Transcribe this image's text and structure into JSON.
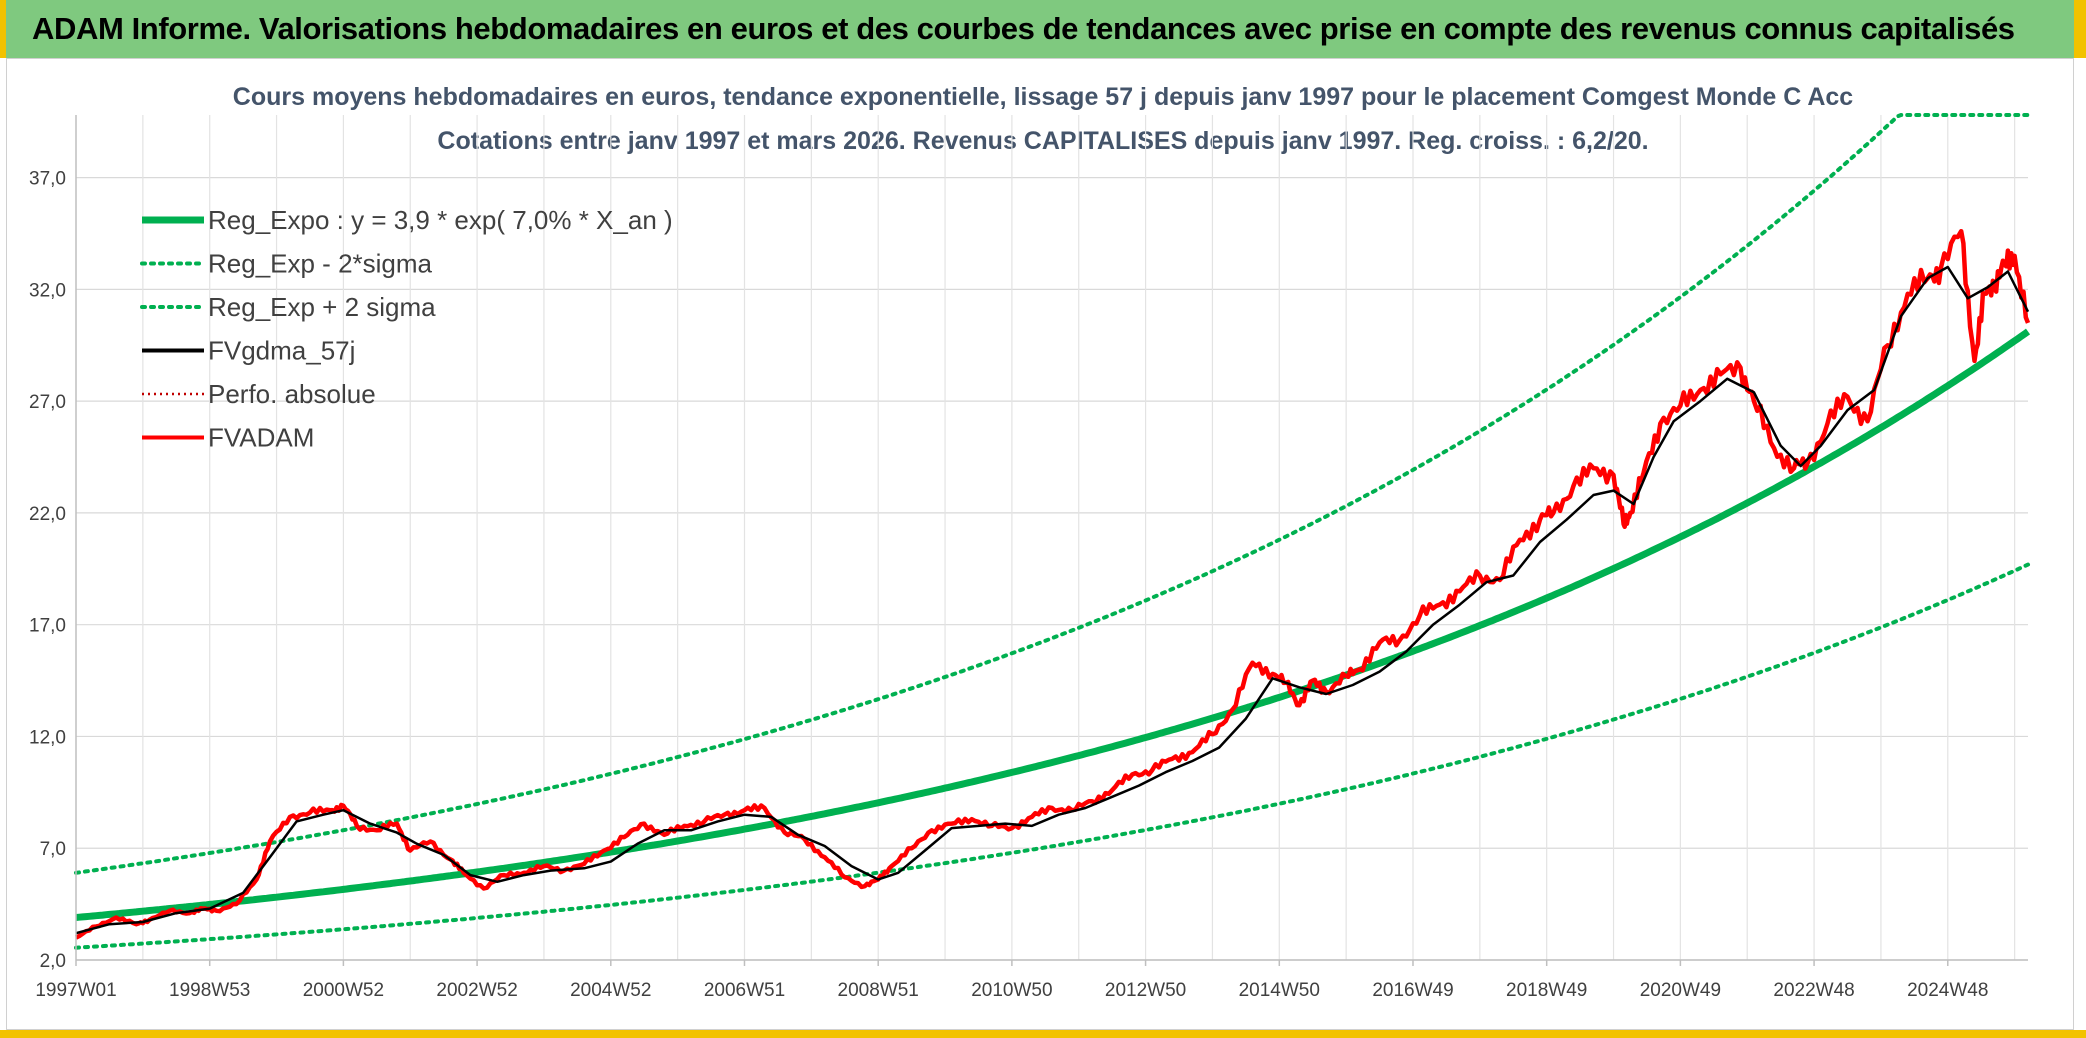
{
  "banner": {
    "title": "ADAM Informe. Valorisations hebdomadaires en euros et des courbes de tendances avec prise en compte des revenus connus capitalisés"
  },
  "colors": {
    "banner_bg": "#7fc97f",
    "accent": "#f2c200",
    "reg_expo": "#00b050",
    "fvadam": "#ff0000",
    "fvgdma": "#000000",
    "title_text": "#44546a"
  },
  "chart_data": {
    "type": "line",
    "title": "Cours moyens hebdomadaires en euros, tendance exponentielle, lissage 57 j depuis janv 1997 pour le placement Comgest Monde C Acc",
    "subtitle": "Cotations entre janv 1997 et mars 2026. Revenus CAPITALISES depuis janv 1997. Reg. croiss. : 6,2/20.",
    "xlabel": "",
    "ylabel": "",
    "ylim": [
      2.0,
      39.8
    ],
    "xlim": [
      1997.0,
      2026.2
    ],
    "yticks": [
      "2,0",
      "7,0",
      "12,0",
      "17,0",
      "22,0",
      "27,0",
      "32,0",
      "37,0"
    ],
    "ytick_values": [
      2,
      7,
      12,
      17,
      22,
      27,
      32,
      37
    ],
    "xticks": [
      "1997W01",
      "1998W53",
      "2000W52",
      "2002W52",
      "2004W52",
      "2006W51",
      "2008W51",
      "2010W50",
      "2012W50",
      "2014W50",
      "2016W49",
      "2018W49",
      "2020W49",
      "2022W48",
      "2024W48"
    ],
    "xtick_years": [
      1997.0,
      1999.0,
      2001.0,
      2003.0,
      2005.0,
      2007.0,
      2009.0,
      2011.0,
      2013.0,
      2015.0,
      2017.0,
      2019.0,
      2021.0,
      2023.0,
      2025.0
    ],
    "grid": true,
    "legend_position": "top-left",
    "legend": [
      {
        "label": "Reg_Expo : y = 3,9 * exp( 7,0% *  X_an )",
        "color": "#00b050",
        "style": "solid-thick"
      },
      {
        "label": "Reg_Exp - 2*sigma",
        "color": "#00b050",
        "style": "dotted"
      },
      {
        "label": "Reg_Exp + 2 sigma",
        "color": "#00b050",
        "style": "dotted"
      },
      {
        "label": "FVgdma_57j",
        "color": "#000000",
        "style": "solid"
      },
      {
        "label": "Perfo. absolue",
        "color": "#c00000",
        "style": "dotted-thin"
      },
      {
        "label": "FVADAM",
        "color": "#ff0000",
        "style": "solid"
      }
    ],
    "series": [
      {
        "name": "Reg_Expo",
        "type": "exponential",
        "a": 3.9,
        "rate": 0.07,
        "x_start": 1997.0,
        "x_end": 2026.2
      },
      {
        "name": "Reg_Exp - 2*sigma",
        "type": "exponential",
        "a": 2.55,
        "rate": 0.07,
        "x_start": 1997.0,
        "x_end": 2026.2
      },
      {
        "name": "Reg_Exp + 2 sigma",
        "type": "exponential",
        "a": 5.9,
        "rate": 0.07,
        "x_start": 1997.0,
        "x_end": 2026.2,
        "cap": 39.8
      },
      {
        "name": "FVADAM",
        "x": [
          1997.0,
          1997.3,
          1997.6,
          1997.9,
          1998.1,
          1998.4,
          1998.7,
          1998.9,
          1999.1,
          1999.4,
          1999.7,
          1999.9,
          2000.2,
          2000.5,
          2000.8,
          2001.0,
          2001.2,
          2001.5,
          2001.8,
          2002.0,
          2002.3,
          2002.6,
          2002.8,
          2003.1,
          2003.4,
          2003.7,
          2004.0,
          2004.3,
          2004.6,
          2004.9,
          2005.2,
          2005.5,
          2005.8,
          2006.1,
          2006.4,
          2006.7,
          2007.0,
          2007.3,
          2007.6,
          2007.9,
          2008.2,
          2008.5,
          2008.8,
          2009.0,
          2009.2,
          2009.5,
          2009.8,
          2010.1,
          2010.4,
          2010.7,
          2011.0,
          2011.3,
          2011.6,
          2011.9,
          2012.2,
          2012.5,
          2012.8,
          2013.1,
          2013.4,
          2013.7,
          2014.0,
          2014.3,
          2014.6,
          2014.9,
          2015.1,
          2015.3,
          2015.5,
          2015.7,
          2016.0,
          2016.2,
          2016.5,
          2016.8,
          2017.1,
          2017.4,
          2017.7,
          2018.0,
          2018.3,
          2018.6,
          2018.9,
          2019.1,
          2019.4,
          2019.7,
          2020.0,
          2020.15,
          2020.25,
          2020.45,
          2020.7,
          2021.0,
          2021.3,
          2021.6,
          2021.9,
          2022.1,
          2022.4,
          2022.7,
          2022.9,
          2023.2,
          2023.5,
          2023.8,
          2024.1,
          2024.4,
          2024.7,
          2024.9,
          2025.2,
          2025.4,
          2025.55,
          2025.7,
          2025.85,
          2026.0,
          2026.2
        ],
        "values": [
          3.0,
          3.5,
          3.9,
          3.6,
          3.8,
          4.2,
          4.1,
          4.3,
          4.2,
          4.5,
          5.6,
          7.3,
          8.4,
          8.6,
          8.7,
          8.9,
          8.0,
          7.8,
          8.1,
          6.9,
          7.3,
          6.5,
          5.9,
          5.2,
          5.8,
          5.9,
          6.2,
          6.0,
          6.3,
          6.9,
          7.5,
          8.1,
          7.6,
          8.0,
          8.2,
          8.5,
          8.7,
          8.8,
          7.7,
          7.4,
          6.6,
          5.7,
          5.3,
          5.6,
          6.2,
          7.0,
          7.8,
          8.1,
          8.3,
          8.0,
          7.9,
          8.4,
          8.8,
          8.7,
          9.1,
          9.6,
          10.3,
          10.5,
          11.0,
          11.3,
          12.1,
          13.2,
          15.3,
          14.8,
          14.4,
          13.4,
          14.5,
          14.0,
          14.7,
          15.0,
          16.2,
          16.3,
          17.4,
          17.9,
          18.5,
          19.2,
          19.0,
          20.8,
          21.7,
          22.0,
          23.2,
          24.0,
          23.7,
          21.5,
          22.0,
          23.8,
          26.0,
          26.8,
          27.5,
          28.2,
          28.5,
          27.0,
          24.9,
          24.0,
          24.2,
          26.0,
          27.2,
          26.1,
          29.5,
          31.8,
          32.5,
          33.0,
          34.6,
          28.8,
          31.8,
          32.3,
          33.1,
          33.5,
          30.5
        ]
      },
      {
        "name": "FVgdma_57j",
        "x": [
          1997.0,
          1997.5,
          1998.0,
          1998.5,
          1999.0,
          1999.5,
          1999.9,
          2000.3,
          2000.7,
          2001.0,
          2001.4,
          2001.8,
          2002.1,
          2002.5,
          2002.9,
          2003.3,
          2003.7,
          2004.1,
          2004.6,
          2005.0,
          2005.4,
          2005.8,
          2006.2,
          2006.6,
          2007.0,
          2007.4,
          2007.8,
          2008.2,
          2008.6,
          2009.0,
          2009.3,
          2009.7,
          2010.1,
          2010.5,
          2010.9,
          2011.3,
          2011.7,
          2012.1,
          2012.5,
          2012.9,
          2013.3,
          2013.7,
          2014.1,
          2014.5,
          2014.9,
          2015.3,
          2015.7,
          2016.1,
          2016.5,
          2016.9,
          2017.3,
          2017.7,
          2018.1,
          2018.5,
          2018.9,
          2019.3,
          2019.7,
          2020.0,
          2020.3,
          2020.6,
          2020.9,
          2021.3,
          2021.7,
          2022.1,
          2022.5,
          2022.8,
          2023.1,
          2023.5,
          2023.9,
          2024.3,
          2024.7,
          2025.0,
          2025.3,
          2025.6,
          2025.9,
          2026.2
        ],
        "values": [
          3.2,
          3.6,
          3.7,
          4.1,
          4.3,
          5.0,
          6.6,
          8.2,
          8.5,
          8.7,
          8.1,
          7.7,
          7.2,
          6.7,
          5.8,
          5.5,
          5.8,
          6.0,
          6.1,
          6.4,
          7.2,
          7.8,
          7.8,
          8.2,
          8.5,
          8.4,
          7.6,
          7.1,
          6.2,
          5.6,
          5.9,
          6.9,
          7.9,
          8.0,
          8.1,
          8.0,
          8.5,
          8.8,
          9.3,
          9.8,
          10.4,
          10.9,
          11.5,
          12.8,
          14.6,
          14.2,
          13.9,
          14.3,
          14.9,
          15.8,
          17.0,
          17.9,
          18.9,
          19.2,
          20.7,
          21.7,
          22.8,
          23.0,
          22.4,
          24.5,
          26.1,
          27.0,
          28.0,
          27.4,
          25.0,
          24.1,
          25.0,
          26.6,
          27.5,
          30.8,
          32.5,
          33.0,
          31.6,
          32.1,
          32.8,
          31.0
        ]
      }
    ]
  }
}
